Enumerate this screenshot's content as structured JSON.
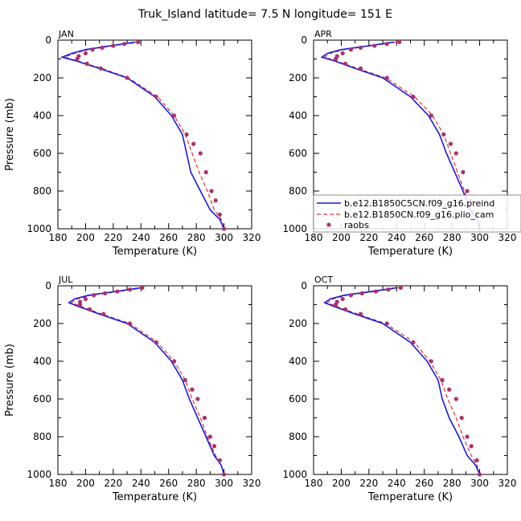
{
  "title": "Truk_Island   latitude= 7.5 N longitude= 151 E",
  "colors": {
    "model_a": "#1a1ae0",
    "model_b": "#e03030",
    "obs": "#b0306a"
  },
  "chart_data": [
    {
      "type": "line",
      "panel": "JAN",
      "xlabel": "Temperature (K)",
      "ylabel": "Pressure (mb)",
      "xlim": [
        180,
        320
      ],
      "ylim": [
        1000,
        0
      ],
      "xticks": [
        "180",
        "200",
        "220",
        "240",
        "260",
        "280",
        "300",
        "320"
      ],
      "yticks": [
        "0",
        "200",
        "400",
        "600",
        "800",
        "1000"
      ],
      "series": [
        {
          "x": [
            236,
            218,
            200,
            190,
            183,
            193,
            210,
            230,
            250,
            262,
            270,
            273,
            276,
            283,
            290,
            297,
            300
          ],
          "y": [
            10,
            30,
            50,
            70,
            90,
            110,
            150,
            200,
            300,
            400,
            500,
            600,
            700,
            800,
            900,
            950,
            1000
          ]
        },
        {
          "x": [
            239,
            220,
            202,
            192,
            185,
            194,
            212,
            231,
            252,
            264,
            272,
            277,
            282,
            288,
            293,
            298,
            300
          ],
          "y": [
            10,
            30,
            50,
            70,
            90,
            110,
            150,
            200,
            300,
            400,
            500,
            600,
            700,
            800,
            900,
            950,
            1000
          ]
        },
        {
          "x": [
            238,
            228,
            220,
            212,
            205,
            200,
            195,
            194,
            201,
            211,
            230,
            251,
            264,
            273,
            278,
            283,
            287,
            291,
            294,
            297,
            300
          ],
          "y": [
            10,
            20,
            30,
            40,
            50,
            70,
            85,
            100,
            125,
            150,
            200,
            300,
            400,
            500,
            550,
            600,
            700,
            800,
            850,
            925,
            1000
          ]
        }
      ]
    },
    {
      "type": "line",
      "panel": "APR",
      "xlabel": "Temperature (K)",
      "ylabel": "",
      "xlim": [
        180,
        320
      ],
      "ylim": [
        1000,
        0
      ],
      "xticks": [
        "180",
        "200",
        "220",
        "240",
        "260",
        "280",
        "300",
        "320"
      ],
      "yticks": [
        "0",
        "200",
        "400",
        "600",
        "800",
        "1000"
      ],
      "legend": {
        "placement": "lower-right",
        "entries": [
          "b.e12.B1850C5CN.f09_g16.preind",
          "b.e12.B1850CN.f09_g16.plio_cam",
          "raobs"
        ]
      },
      "series": [
        {
          "x": [
            238,
            220,
            200,
            190,
            186,
            195,
            210,
            230,
            250,
            263,
            271,
            276,
            282,
            288,
            293,
            298,
            300
          ],
          "y": [
            10,
            30,
            50,
            70,
            90,
            110,
            150,
            200,
            300,
            400,
            500,
            600,
            700,
            800,
            900,
            950,
            1000
          ]
        },
        {
          "x": [
            240,
            222,
            202,
            192,
            188,
            196,
            212,
            232,
            253,
            266,
            274,
            279,
            284,
            289,
            294,
            298,
            300
          ],
          "y": [
            10,
            30,
            50,
            70,
            90,
            110,
            150,
            200,
            300,
            400,
            500,
            600,
            700,
            800,
            900,
            950,
            1000
          ]
        },
        {
          "x": [
            242,
            233,
            224,
            214,
            207,
            201,
            197,
            196,
            203,
            214,
            233,
            252,
            265,
            274,
            279,
            283,
            288,
            291,
            294,
            297,
            300
          ],
          "y": [
            10,
            20,
            30,
            40,
            50,
            70,
            85,
            100,
            125,
            150,
            200,
            300,
            400,
            500,
            550,
            600,
            700,
            800,
            850,
            925,
            1000
          ]
        }
      ]
    },
    {
      "type": "line",
      "panel": "JUL",
      "xlabel": "Temperature (K)",
      "ylabel": "Pressure (mb)",
      "xlim": [
        180,
        320
      ],
      "ylim": [
        1000,
        0
      ],
      "xticks": [
        "180",
        "200",
        "220",
        "240",
        "260",
        "280",
        "300",
        "320"
      ],
      "yticks": [
        "0",
        "200",
        "400",
        "600",
        "800",
        "1000"
      ],
      "series": [
        {
          "x": [
            240,
            222,
            202,
            192,
            188,
            195,
            210,
            230,
            250,
            262,
            270,
            275,
            281,
            287,
            293,
            298,
            300
          ],
          "y": [
            10,
            30,
            50,
            70,
            90,
            110,
            150,
            200,
            300,
            400,
            500,
            600,
            700,
            800,
            900,
            950,
            1000
          ]
        },
        {
          "x": [
            242,
            224,
            204,
            194,
            190,
            197,
            212,
            232,
            252,
            264,
            272,
            277,
            283,
            288,
            294,
            298,
            300
          ],
          "y": [
            10,
            30,
            50,
            70,
            90,
            110,
            150,
            200,
            300,
            400,
            500,
            600,
            700,
            800,
            900,
            950,
            1000
          ]
        },
        {
          "x": [
            241,
            232,
            223,
            214,
            206,
            200,
            196,
            196,
            203,
            213,
            232,
            251,
            264,
            272,
            277,
            281,
            286,
            290,
            293,
            297,
            300
          ],
          "y": [
            10,
            20,
            30,
            40,
            50,
            70,
            85,
            100,
            125,
            150,
            200,
            300,
            400,
            500,
            550,
            600,
            700,
            800,
            850,
            925,
            1000
          ]
        }
      ]
    },
    {
      "type": "line",
      "panel": "OCT",
      "xlabel": "Temperature (K)",
      "ylabel": "",
      "xlim": [
        180,
        320
      ],
      "ylim": [
        1000,
        0
      ],
      "xticks": [
        "180",
        "200",
        "220",
        "240",
        "260",
        "280",
        "300",
        "320"
      ],
      "yticks": [
        "0",
        "200",
        "400",
        "600",
        "800",
        "1000"
      ],
      "series": [
        {
          "x": [
            240,
            222,
            202,
            192,
            188,
            195,
            210,
            230,
            250,
            262,
            270,
            273,
            278,
            285,
            291,
            297,
            300
          ],
          "y": [
            10,
            30,
            50,
            70,
            90,
            110,
            150,
            200,
            300,
            400,
            500,
            600,
            700,
            800,
            900,
            950,
            1000
          ]
        },
        {
          "x": [
            242,
            224,
            204,
            194,
            190,
            197,
            212,
            232,
            253,
            264,
            272,
            277,
            283,
            288,
            294,
            298,
            300
          ],
          "y": [
            10,
            30,
            50,
            70,
            90,
            110,
            150,
            200,
            300,
            400,
            500,
            600,
            700,
            800,
            900,
            950,
            1000
          ]
        },
        {
          "x": [
            243,
            234,
            225,
            215,
            207,
            201,
            197,
            196,
            203,
            214,
            233,
            252,
            265,
            273,
            278,
            283,
            287,
            291,
            294,
            298,
            300
          ],
          "y": [
            10,
            20,
            30,
            40,
            50,
            70,
            85,
            100,
            125,
            150,
            200,
            300,
            400,
            500,
            550,
            600,
            700,
            800,
            850,
            925,
            1000
          ]
        }
      ]
    }
  ]
}
